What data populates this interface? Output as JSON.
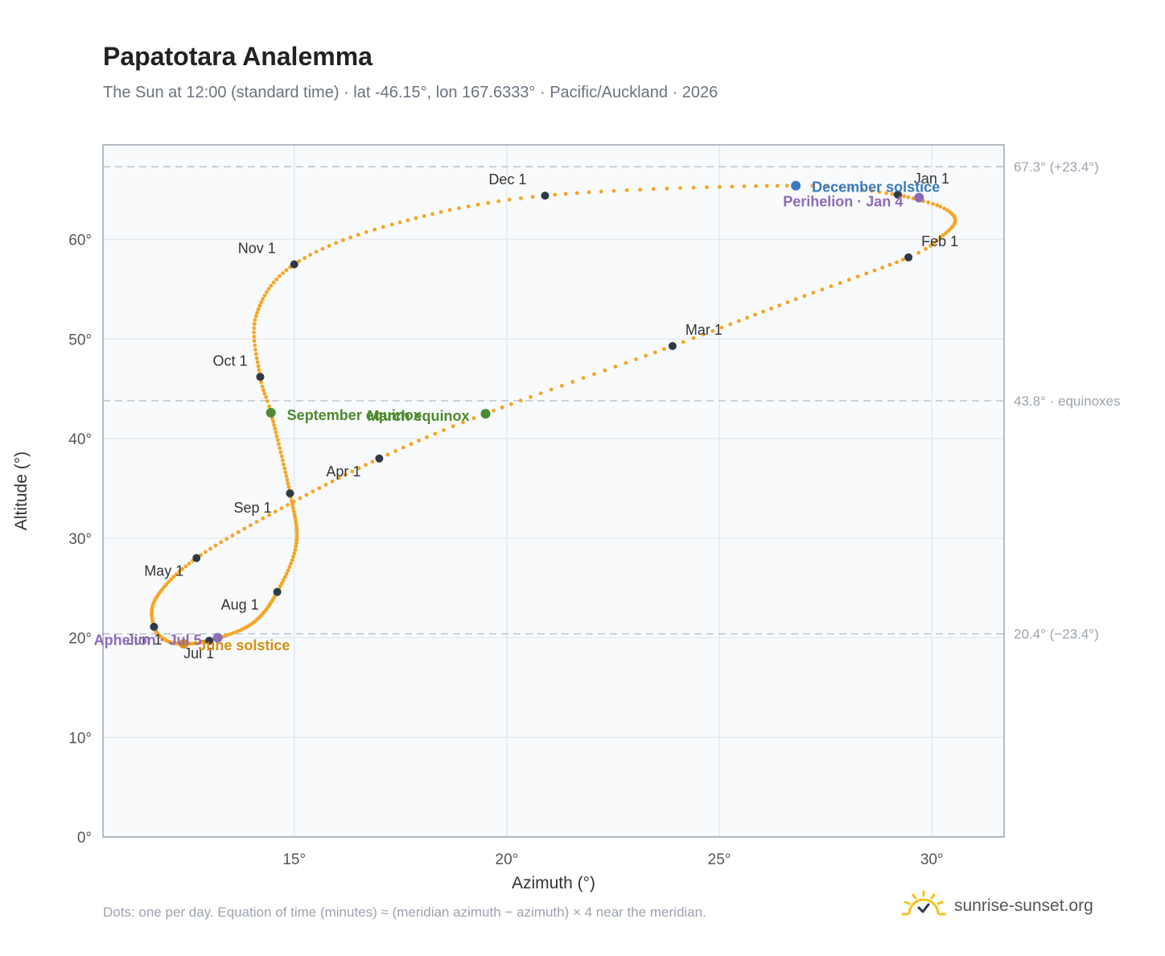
{
  "page": {
    "title": "Papatotara Analemma",
    "subtitle": "The Sun at 12:00 (standard time) · lat -46.15°, lon 167.6333° · Pacific/Auckland · 2026",
    "footnote": "Dots: one per day. Equation of time (minutes) ≈ (meridian azimuth − azimuth) × 4 near the meridian.",
    "brand": "sunrise-sunset.org",
    "brand_icon": "sun-logo-icon"
  },
  "chart_data": {
    "type": "scatter",
    "title": "Papatotara Analemma",
    "xlabel": "Azimuth (°)",
    "ylabel": "Altitude (°)",
    "xlim": [
      10.5,
      31.7
    ],
    "ylim": [
      0,
      69.5
    ],
    "x_ticks": [
      {
        "value": 15,
        "label": "15°"
      },
      {
        "value": 20,
        "label": "20°"
      },
      {
        "value": 25,
        "label": "25°"
      },
      {
        "value": 30,
        "label": "30°"
      }
    ],
    "y_ticks": [
      {
        "value": 0,
        "label": "0°"
      },
      {
        "value": 10,
        "label": "10°"
      },
      {
        "value": 20,
        "label": "20°"
      },
      {
        "value": 30,
        "label": "30°"
      },
      {
        "value": 40,
        "label": "40°"
      },
      {
        "value": 50,
        "label": "50°"
      },
      {
        "value": 60,
        "label": "60°"
      }
    ],
    "grid": true,
    "reference_lines": [
      {
        "y": 67.3,
        "label": "67.3° (+23.4°)"
      },
      {
        "y": 43.8,
        "label": "43.8° · equinoxes"
      },
      {
        "y": 20.4,
        "label": "20.4° (−23.4°)"
      }
    ],
    "curve_color": "#f5a623",
    "month_points": [
      {
        "label": "Jan 1",
        "az": 29.2,
        "alt": 64.5
      },
      {
        "label": "Feb 1",
        "az": 29.45,
        "alt": 58.2
      },
      {
        "label": "Mar 1",
        "az": 23.9,
        "alt": 49.3
      },
      {
        "label": "Apr 1",
        "az": 17.0,
        "alt": 38.0
      },
      {
        "label": "May 1",
        "az": 12.7,
        "alt": 28.0
      },
      {
        "label": "Jun 1",
        "az": 11.7,
        "alt": 21.1
      },
      {
        "label": "Jul 1",
        "az": 13.0,
        "alt": 19.7
      },
      {
        "label": "Aug 1",
        "az": 14.6,
        "alt": 24.6
      },
      {
        "label": "Sep 1",
        "az": 14.9,
        "alt": 34.5
      },
      {
        "label": "Oct 1",
        "az": 14.2,
        "alt": 46.2
      },
      {
        "label": "Nov 1",
        "az": 15.0,
        "alt": 57.5
      },
      {
        "label": "Dec 1",
        "az": 20.9,
        "alt": 64.4
      }
    ],
    "events": [
      {
        "label": "December solstice",
        "az": 26.8,
        "alt": 65.4,
        "color": "#3a7bbf"
      },
      {
        "label": "Perihelion · Jan 4",
        "az": 29.7,
        "alt": 64.2,
        "color": "#8e6bb8"
      },
      {
        "label": "March equinox",
        "az": 19.5,
        "alt": 42.5,
        "color": "#4e8a2e"
      },
      {
        "label": "September equinox",
        "az": 14.45,
        "alt": 42.6,
        "color": "#4e8a2e"
      },
      {
        "label": "June solstice",
        "az": 12.4,
        "alt": 19.4,
        "color": "#d4900f"
      },
      {
        "label": "Aphelion · Jul 5",
        "az": 13.2,
        "alt": 20.0,
        "color": "#8e6bb8"
      }
    ],
    "path_anchors": [
      {
        "day": 0,
        "az": 29.2,
        "alt": 64.5
      },
      {
        "day": 10,
        "az": 30.2,
        "alt": 63.3
      },
      {
        "day": 17,
        "az": 30.55,
        "alt": 61.9
      },
      {
        "day": 25,
        "az": 30.2,
        "alt": 60.2
      },
      {
        "day": 31,
        "az": 29.45,
        "alt": 58.2
      },
      {
        "day": 45,
        "az": 26.8,
        "alt": 54.0
      },
      {
        "day": 59,
        "az": 23.9,
        "alt": 49.3
      },
      {
        "day": 78,
        "az": 19.5,
        "alt": 42.5
      },
      {
        "day": 90,
        "az": 17.0,
        "alt": 38.0
      },
      {
        "day": 105,
        "az": 14.7,
        "alt": 33.0
      },
      {
        "day": 120,
        "az": 12.7,
        "alt": 28.0
      },
      {
        "day": 136,
        "az": 11.75,
        "alt": 24.0
      },
      {
        "day": 151,
        "az": 11.7,
        "alt": 21.1
      },
      {
        "day": 163,
        "az": 12.0,
        "alt": 19.7
      },
      {
        "day": 171,
        "az": 12.4,
        "alt": 19.4
      },
      {
        "day": 181,
        "az": 13.0,
        "alt": 19.7
      },
      {
        "day": 197,
        "az": 14.0,
        "alt": 21.4
      },
      {
        "day": 212,
        "az": 14.6,
        "alt": 24.6
      },
      {
        "day": 227,
        "az": 15.05,
        "alt": 29.5
      },
      {
        "day": 243,
        "az": 14.9,
        "alt": 34.5
      },
      {
        "day": 265,
        "az": 14.45,
        "alt": 42.6
      },
      {
        "day": 273,
        "az": 14.2,
        "alt": 46.2
      },
      {
        "day": 288,
        "az": 14.1,
        "alt": 52.3
      },
      {
        "day": 304,
        "az": 15.0,
        "alt": 57.5
      },
      {
        "day": 318,
        "az": 17.3,
        "alt": 61.5
      },
      {
        "day": 334,
        "az": 20.9,
        "alt": 64.4
      },
      {
        "day": 355,
        "az": 26.8,
        "alt": 65.4
      },
      {
        "day": 365,
        "az": 29.2,
        "alt": 64.5
      }
    ]
  }
}
